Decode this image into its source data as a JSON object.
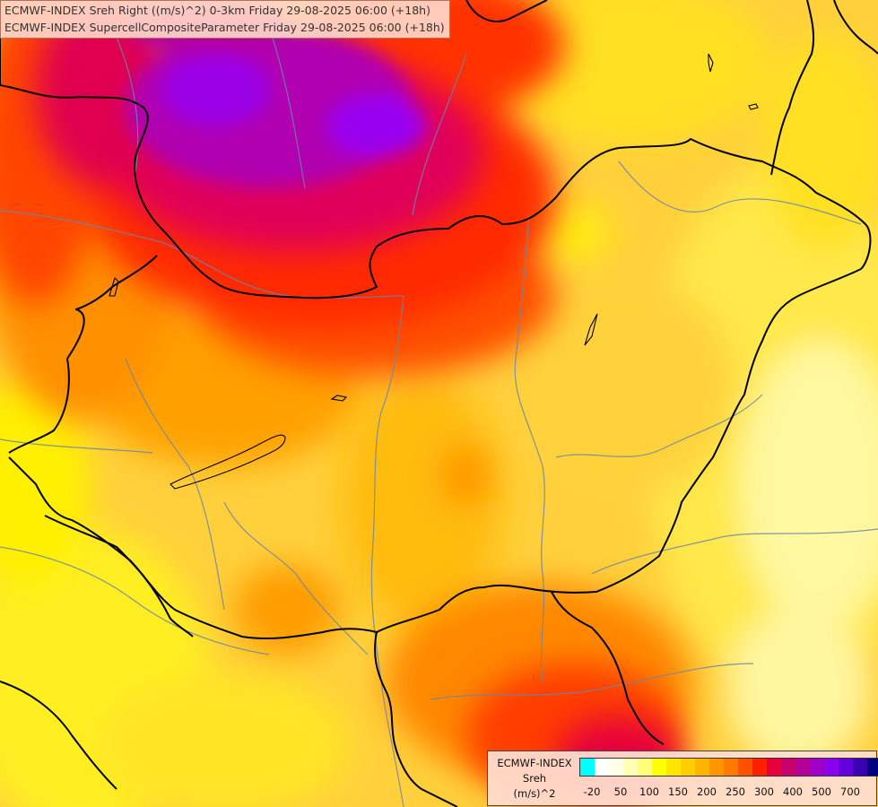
{
  "title": {
    "line1": "ECMWF-INDEX Sreh Right ((m/s)^2) 0-3km Friday 29-08-2025 06:00 (+18h)",
    "line2": "ECMWF-INDEX SupercellCompositeParameter Friday 29-08-2025 06:00 (+18h)"
  },
  "legend": {
    "line1": "ECMWF-INDEX",
    "line2": "Sreh",
    "line3": "(m/s)^2",
    "colors": [
      "#00ffff",
      "#ffffff",
      "#ffffe6",
      "#ffffb4",
      "#ffff78",
      "#ffff00",
      "#ffe600",
      "#ffcd00",
      "#ffb400",
      "#ff9600",
      "#ff7800",
      "#ff5000",
      "#ff1e00",
      "#e6003c",
      "#c8006e",
      "#b4009b",
      "#a000c8",
      "#8c00f0",
      "#6400dc",
      "#3c00b4",
      "#000080"
    ],
    "ticks": [
      "-20",
      "50",
      "100",
      "150",
      "200",
      "250",
      "300",
      "400",
      "500",
      "700"
    ]
  },
  "colors": {
    "low": "#ffff60",
    "medium": "#ffb400",
    "high": "#ff4000",
    "very_high": "#e6004b",
    "extreme": "#a000e0"
  }
}
